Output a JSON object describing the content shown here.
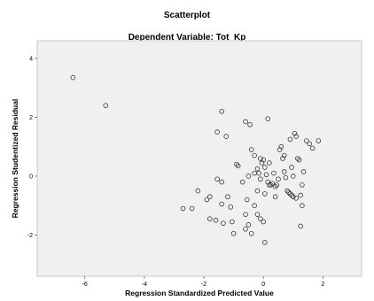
{
  "chart_data": {
    "type": "scatter",
    "title": "Scatterplot",
    "subtitle": "Dependent Variable: Tot_Kp",
    "xlabel": "Regression Standardized Predicted Value",
    "ylabel": "Regression Studentized Residual",
    "xlim": [
      -7.6,
      3.3
    ],
    "ylim": [
      -3.4,
      4.6
    ],
    "x_ticks": [
      -6,
      -4,
      -2,
      0,
      2
    ],
    "y_ticks": [
      -2,
      0,
      2,
      4
    ],
    "x_tick_labels": [
      "-6",
      "-4",
      "-2",
      "0",
      "2"
    ],
    "y_tick_labels": [
      "-2",
      "0",
      "2",
      "4"
    ],
    "grid": false,
    "plot_background": "#f0f0f0",
    "marker": "open-circle",
    "points": [
      [
        -6.4,
        3.35
      ],
      [
        -5.3,
        2.4
      ],
      [
        -2.7,
        -1.1
      ],
      [
        -2.4,
        -1.1
      ],
      [
        -2.2,
        -0.5
      ],
      [
        -1.9,
        -0.8
      ],
      [
        -1.8,
        -1.45
      ],
      [
        -1.8,
        -0.7
      ],
      [
        -1.6,
        -1.5
      ],
      [
        -1.55,
        -0.1
      ],
      [
        -1.4,
        -0.2
      ],
      [
        -1.4,
        -0.95
      ],
      [
        -1.35,
        -1.6
      ],
      [
        -1.2,
        -0.7
      ],
      [
        -1.1,
        -1.05
      ],
      [
        -1.05,
        -1.55
      ],
      [
        -0.9,
        0.4
      ],
      [
        -0.85,
        0.35
      ],
      [
        -0.7,
        -0.2
      ],
      [
        -0.6,
        -1.3
      ],
      [
        -0.55,
        -0.8
      ],
      [
        -0.5,
        -1.65
      ],
      [
        -0.3,
        -1.0
      ],
      [
        -0.2,
        -1.3
      ],
      [
        -0.1,
        -1.45
      ],
      [
        0.0,
        -1.55
      ],
      [
        0.05,
        -2.25
      ],
      [
        -0.4,
        -1.95
      ],
      [
        -0.6,
        -1.8
      ],
      [
        -1.0,
        -1.95
      ],
      [
        -1.55,
        1.5
      ],
      [
        -1.4,
        2.2
      ],
      [
        -1.25,
        1.35
      ],
      [
        -0.6,
        1.85
      ],
      [
        -0.45,
        1.75
      ],
      [
        0.15,
        1.95
      ],
      [
        -0.4,
        0.9
      ],
      [
        -0.3,
        0.7
      ],
      [
        -0.2,
        0.25
      ],
      [
        -0.15,
        0.1
      ],
      [
        -0.1,
        0.6
      ],
      [
        -0.05,
        0.45
      ],
      [
        0.0,
        0.55
      ],
      [
        0.05,
        0.3
      ],
      [
        0.1,
        0.05
      ],
      [
        0.15,
        -0.2
      ],
      [
        0.2,
        -0.3
      ],
      [
        0.25,
        -0.3
      ],
      [
        0.3,
        -0.25
      ],
      [
        0.35,
        0.1
      ],
      [
        0.4,
        -0.35
      ],
      [
        0.45,
        -0.3
      ],
      [
        0.5,
        -0.1
      ],
      [
        0.55,
        0.9
      ],
      [
        0.6,
        1.0
      ],
      [
        0.65,
        0.6
      ],
      [
        0.7,
        0.15
      ],
      [
        0.75,
        -0.05
      ],
      [
        0.8,
        -0.5
      ],
      [
        0.85,
        -0.55
      ],
      [
        0.9,
        -0.6
      ],
      [
        0.95,
        0.3
      ],
      [
        1.0,
        0.0
      ],
      [
        1.05,
        1.45
      ],
      [
        1.1,
        1.35
      ],
      [
        1.15,
        0.6
      ],
      [
        1.2,
        0.55
      ],
      [
        1.25,
        -0.65
      ],
      [
        1.3,
        -0.3
      ],
      [
        1.35,
        0.15
      ],
      [
        1.45,
        1.2
      ],
      [
        1.55,
        1.1
      ],
      [
        1.65,
        0.95
      ],
      [
        1.85,
        1.2
      ],
      [
        1.25,
        -1.7
      ],
      [
        -0.3,
        0.1
      ],
      [
        -0.1,
        -0.1
      ],
      [
        0.2,
        0.45
      ],
      [
        0.9,
        1.25
      ],
      [
        0.95,
        -0.65
      ],
      [
        1.0,
        -0.7
      ],
      [
        1.1,
        -0.75
      ],
      [
        1.3,
        -1.0
      ],
      [
        0.4,
        -0.7
      ],
      [
        -0.2,
        -0.5
      ],
      [
        0.05,
        -0.6
      ],
      [
        -0.5,
        0.0
      ],
      [
        0.7,
        0.7
      ]
    ]
  }
}
